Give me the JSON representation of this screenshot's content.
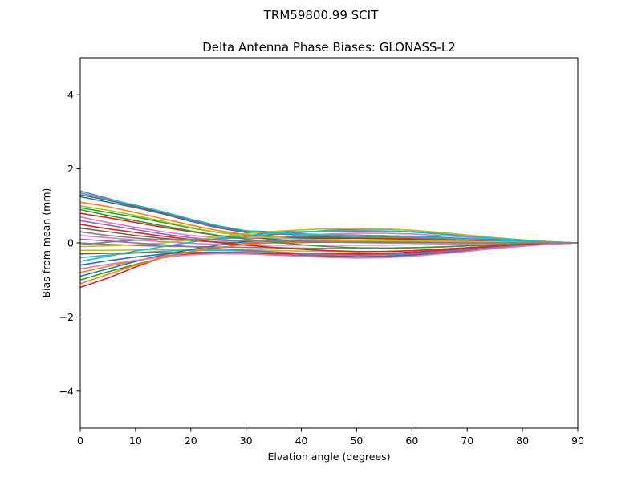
{
  "figure": {
    "suptitle": "TRM59800.99      SCIT"
  },
  "chart_data": {
    "type": "line",
    "title": "Delta Antenna Phase Biases: GLONASS-L2",
    "xlabel": "Elvation angle (degrees)",
    "ylabel": "Bias from mean (mm)",
    "xlim": [
      0,
      90
    ],
    "ylim": [
      -5,
      5
    ],
    "xticks": [
      0,
      10,
      20,
      30,
      40,
      50,
      60,
      70,
      80,
      90
    ],
    "yticks": [
      -4,
      -2,
      0,
      2,
      4
    ],
    "ytick_labels": [
      "−4",
      "−2",
      "0",
      "2",
      "4"
    ],
    "grid": false,
    "legend": "none",
    "x": [
      0,
      5,
      10,
      15,
      20,
      25,
      30,
      35,
      40,
      45,
      50,
      55,
      60,
      65,
      70,
      75,
      80,
      85,
      90
    ],
    "series": [
      {
        "color": "#1f77b4",
        "values": [
          1.25,
          1.1,
          0.95,
          0.78,
          0.58,
          0.4,
          0.28,
          0.24,
          0.22,
          0.2,
          0.18,
          0.17,
          0.15,
          0.12,
          0.09,
          0.06,
          0.04,
          0.02,
          0
        ]
      },
      {
        "color": "#ff7f0e",
        "values": [
          1.1,
          0.98,
          0.82,
          0.65,
          0.48,
          0.33,
          0.22,
          0.18,
          0.17,
          0.16,
          0.15,
          0.14,
          0.12,
          0.1,
          0.08,
          0.05,
          0.03,
          0.01,
          0
        ]
      },
      {
        "color": "#2ca02c",
        "values": [
          0.95,
          0.82,
          0.7,
          0.55,
          0.4,
          0.28,
          0.2,
          0.17,
          0.15,
          0.14,
          0.13,
          0.12,
          0.11,
          0.09,
          0.07,
          0.05,
          0.03,
          0.01,
          0
        ]
      },
      {
        "color": "#d62728",
        "values": [
          0.8,
          0.68,
          0.55,
          0.42,
          0.3,
          0.2,
          0.13,
          0.12,
          0.12,
          0.12,
          0.12,
          0.11,
          0.1,
          0.08,
          0.06,
          0.04,
          0.02,
          0.01,
          0
        ]
      },
      {
        "color": "#9467bd",
        "values": [
          0.6,
          0.48,
          0.36,
          0.24,
          0.14,
          0.07,
          0.04,
          0.05,
          0.06,
          0.07,
          0.07,
          0.07,
          0.06,
          0.05,
          0.04,
          0.03,
          0.02,
          0.01,
          0
        ]
      },
      {
        "color": "#8c564b",
        "values": [
          0.4,
          0.3,
          0.2,
          0.12,
          0.06,
          0.02,
          0.0,
          0.0,
          0.01,
          0.02,
          0.02,
          0.02,
          0.02,
          0.02,
          0.01,
          0.01,
          0.0,
          0.0,
          0
        ]
      },
      {
        "color": "#e377c2",
        "values": [
          0.2,
          0.14,
          0.08,
          0.03,
          -0.01,
          -0.04,
          -0.06,
          -0.06,
          -0.06,
          -0.06,
          -0.06,
          -0.06,
          -0.05,
          -0.04,
          -0.03,
          -0.02,
          -0.01,
          0.0,
          0
        ]
      },
      {
        "color": "#7f7f7f",
        "values": [
          0.0,
          -0.04,
          -0.07,
          -0.09,
          -0.1,
          -0.11,
          -0.12,
          -0.13,
          -0.14,
          -0.15,
          -0.15,
          -0.14,
          -0.13,
          -0.11,
          -0.08,
          -0.05,
          -0.03,
          -0.01,
          0
        ]
      },
      {
        "color": "#bcbd22",
        "values": [
          -0.2,
          -0.2,
          -0.19,
          -0.18,
          -0.17,
          -0.17,
          -0.18,
          -0.2,
          -0.22,
          -0.23,
          -0.24,
          -0.23,
          -0.21,
          -0.17,
          -0.13,
          -0.09,
          -0.05,
          -0.02,
          0
        ]
      },
      {
        "color": "#17becf",
        "values": [
          -0.4,
          -0.33,
          -0.27,
          -0.22,
          -0.2,
          -0.2,
          -0.22,
          -0.25,
          -0.28,
          -0.31,
          -0.32,
          -0.31,
          -0.28,
          -0.23,
          -0.17,
          -0.11,
          -0.06,
          -0.02,
          0
        ]
      },
      {
        "color": "#1f77b4",
        "values": [
          -0.6,
          -0.48,
          -0.38,
          -0.3,
          -0.26,
          -0.25,
          -0.26,
          -0.29,
          -0.32,
          -0.35,
          -0.37,
          -0.36,
          -0.32,
          -0.26,
          -0.19,
          -0.12,
          -0.07,
          -0.03,
          0
        ]
      },
      {
        "color": "#ff7f0e",
        "values": [
          -0.8,
          -0.63,
          -0.48,
          -0.35,
          -0.28,
          -0.26,
          -0.27,
          -0.29,
          -0.31,
          -0.32,
          -0.33,
          -0.32,
          -0.29,
          -0.24,
          -0.18,
          -0.12,
          -0.07,
          -0.03,
          0
        ]
      },
      {
        "color": "#2ca02c",
        "values": [
          -1.0,
          -0.78,
          -0.58,
          -0.4,
          -0.3,
          -0.27,
          -0.27,
          -0.28,
          -0.3,
          -0.3,
          -0.3,
          -0.29,
          -0.26,
          -0.22,
          -0.16,
          -0.11,
          -0.06,
          -0.02,
          0
        ]
      },
      {
        "color": "#d62728",
        "values": [
          -1.2,
          -0.95,
          -0.65,
          -0.38,
          -0.3,
          -0.28,
          -0.27,
          -0.28,
          -0.29,
          -0.3,
          -0.3,
          -0.28,
          -0.25,
          -0.2,
          -0.15,
          -0.1,
          -0.06,
          -0.02,
          0
        ]
      },
      {
        "color": "#9467bd",
        "values": [
          1.4,
          1.2,
          1.0,
          0.8,
          0.6,
          0.42,
          0.3,
          0.26,
          0.24,
          0.22,
          0.21,
          0.19,
          0.16,
          0.13,
          0.1,
          0.07,
          0.04,
          0.02,
          0
        ]
      },
      {
        "color": "#8c564b",
        "values": [
          1.3,
          1.15,
          0.98,
          0.8,
          0.62,
          0.44,
          0.32,
          0.3,
          0.3,
          0.31,
          0.32,
          0.32,
          0.3,
          0.25,
          0.19,
          0.13,
          0.08,
          0.03,
          0
        ]
      },
      {
        "color": "#e377c2",
        "values": [
          0.7,
          0.55,
          0.42,
          0.3,
          0.2,
          0.14,
          0.12,
          0.16,
          0.2,
          0.24,
          0.26,
          0.26,
          0.24,
          0.2,
          0.15,
          0.1,
          0.06,
          0.02,
          0
        ]
      },
      {
        "color": "#7f7f7f",
        "values": [
          0.3,
          0.2,
          0.13,
          0.08,
          0.07,
          0.1,
          0.16,
          0.22,
          0.28,
          0.34,
          0.37,
          0.37,
          0.34,
          0.28,
          0.21,
          0.14,
          0.08,
          0.03,
          0
        ]
      },
      {
        "color": "#bcbd22",
        "values": [
          -0.1,
          -0.08,
          -0.05,
          0.0,
          0.07,
          0.16,
          0.25,
          0.31,
          0.35,
          0.38,
          0.39,
          0.38,
          0.34,
          0.28,
          0.21,
          0.14,
          0.08,
          0.03,
          0
        ]
      },
      {
        "color": "#17becf",
        "values": [
          -0.5,
          -0.36,
          -0.22,
          -0.1,
          0.02,
          0.12,
          0.2,
          0.26,
          0.3,
          0.32,
          0.33,
          0.32,
          0.29,
          0.24,
          0.18,
          0.12,
          0.07,
          0.02,
          0
        ]
      },
      {
        "color": "#1f77b4",
        "values": [
          -0.9,
          -0.7,
          -0.5,
          -0.32,
          -0.18,
          -0.06,
          0.04,
          0.1,
          0.14,
          0.17,
          0.19,
          0.19,
          0.18,
          0.15,
          0.11,
          0.08,
          0.04,
          0.01,
          0
        ]
      },
      {
        "color": "#ff7f0e",
        "values": [
          -1.1,
          -0.85,
          -0.6,
          -0.4,
          -0.24,
          -0.12,
          -0.04,
          0.0,
          0.02,
          0.04,
          0.05,
          0.06,
          0.06,
          0.05,
          0.04,
          0.03,
          0.02,
          0.01,
          0
        ]
      },
      {
        "color": "#2ca02c",
        "values": [
          0.9,
          0.74,
          0.6,
          0.46,
          0.32,
          0.2,
          0.1,
          0.02,
          -0.05,
          -0.1,
          -0.13,
          -0.14,
          -0.13,
          -0.11,
          -0.08,
          -0.05,
          -0.03,
          -0.01,
          0
        ]
      },
      {
        "color": "#d62728",
        "values": [
          0.5,
          0.38,
          0.28,
          0.18,
          0.09,
          0.01,
          -0.06,
          -0.12,
          -0.17,
          -0.21,
          -0.23,
          -0.23,
          -0.21,
          -0.17,
          -0.13,
          -0.08,
          -0.05,
          -0.02,
          0
        ]
      },
      {
        "color": "#9467bd",
        "values": [
          0.1,
          0.05,
          0.0,
          -0.05,
          -0.1,
          -0.15,
          -0.2,
          -0.24,
          -0.28,
          -0.31,
          -0.33,
          -0.32,
          -0.29,
          -0.24,
          -0.18,
          -0.12,
          -0.07,
          -0.03,
          0
        ]
      },
      {
        "color": "#8c564b",
        "values": [
          -0.3,
          -0.28,
          -0.27,
          -0.26,
          -0.26,
          -0.27,
          -0.29,
          -0.32,
          -0.35,
          -0.38,
          -0.4,
          -0.39,
          -0.35,
          -0.29,
          -0.22,
          -0.15,
          -0.09,
          -0.03,
          0
        ]
      },
      {
        "color": "#e377c2",
        "values": [
          -0.7,
          -0.58,
          -0.47,
          -0.38,
          -0.32,
          -0.29,
          -0.3,
          -0.33,
          -0.36,
          -0.39,
          -0.41,
          -0.4,
          -0.36,
          -0.3,
          -0.23,
          -0.15,
          -0.09,
          -0.03,
          0
        ]
      },
      {
        "color": "#17becf",
        "values": [
          1.35,
          1.18,
          1.02,
          0.84,
          0.64,
          0.46,
          0.33,
          0.27,
          0.23,
          0.21,
          0.2,
          0.19,
          0.17,
          0.14,
          0.1,
          0.07,
          0.04,
          0.02,
          0
        ]
      },
      {
        "color": "#bcbd22",
        "values": [
          1.0,
          0.88,
          0.74,
          0.58,
          0.42,
          0.28,
          0.18,
          0.13,
          0.1,
          0.08,
          0.07,
          0.06,
          0.05,
          0.04,
          0.03,
          0.02,
          0.01,
          0.0,
          0
        ]
      },
      {
        "color": "#7f7f7f",
        "values": [
          -0.05,
          0.02,
          0.07,
          0.09,
          0.09,
          0.08,
          0.06,
          0.04,
          0.03,
          0.02,
          0.01,
          0.0,
          0.0,
          0.0,
          0.0,
          0.0,
          0.0,
          0.0,
          0
        ]
      }
    ]
  }
}
